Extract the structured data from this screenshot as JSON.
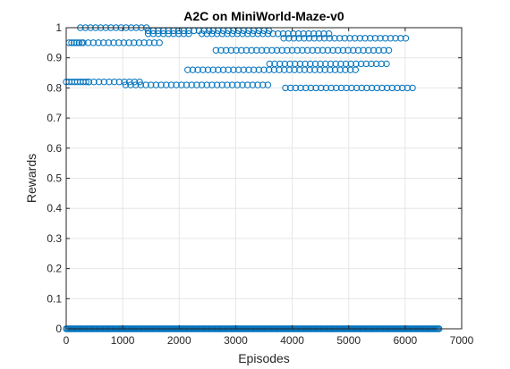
{
  "chart_data": {
    "type": "scatter",
    "title": "A2C on MiniWorld-Maze-v0",
    "xlabel": "Episodes",
    "ylabel": "Rewards",
    "xlim": [
      0,
      7000
    ],
    "ylim": [
      0,
      1
    ],
    "xticks": [
      0,
      1000,
      2000,
      3000,
      4000,
      5000,
      6000,
      7000
    ],
    "yticks": [
      0,
      0.1,
      0.2,
      0.3,
      0.4,
      0.5,
      0.6,
      0.7,
      0.8,
      0.9,
      1
    ],
    "xtick_labels": [
      "0",
      "1000",
      "2000",
      "3000",
      "4000",
      "5000",
      "6000",
      "7000"
    ],
    "ytick_labels": [
      "0",
      "0.1",
      "0.2",
      "0.3",
      "0.4",
      "0.5",
      "0.6",
      "0.7",
      "0.8",
      "0.9",
      "1"
    ],
    "grid": true,
    "marker": "open-circle",
    "marker_color": "#0072bd",
    "series": [
      {
        "name": "Rewards",
        "segments": [
          {
            "x_start": 0,
            "x_end": 6600,
            "step": 22,
            "y": 0
          },
          {
            "x_start": 0,
            "x_end": 400,
            "step": 50,
            "y": 0.82
          },
          {
            "x_start": 400,
            "x_end": 1300,
            "step": 90,
            "y": 0.82
          },
          {
            "x_start": 1050,
            "x_end": 3600,
            "step": 90,
            "y": 0.81
          },
          {
            "x_start": 3880,
            "x_end": 6200,
            "step": 90,
            "y": 0.8
          },
          {
            "x_start": 50,
            "x_end": 300,
            "step": 45,
            "y": 0.95
          },
          {
            "x_start": 300,
            "x_end": 1700,
            "step": 90,
            "y": 0.95
          },
          {
            "x_start": 250,
            "x_end": 1500,
            "step": 90,
            "y": 1.0
          },
          {
            "x_start": 1450,
            "x_end": 2600,
            "step": 90,
            "y": 0.99
          },
          {
            "x_start": 1450,
            "x_end": 2200,
            "step": 90,
            "y": 0.98
          },
          {
            "x_start": 2400,
            "x_end": 4700,
            "step": 90,
            "y": 0.98
          },
          {
            "x_start": 2600,
            "x_end": 3600,
            "step": 90,
            "y": 0.99
          },
          {
            "x_start": 3850,
            "x_end": 6050,
            "step": 90,
            "y": 0.965
          },
          {
            "x_start": 2650,
            "x_end": 5750,
            "step": 90,
            "y": 0.925
          },
          {
            "x_start": 3600,
            "x_end": 5700,
            "step": 90,
            "y": 0.88
          },
          {
            "x_start": 2150,
            "x_end": 5200,
            "step": 90,
            "y": 0.86
          }
        ]
      }
    ]
  }
}
